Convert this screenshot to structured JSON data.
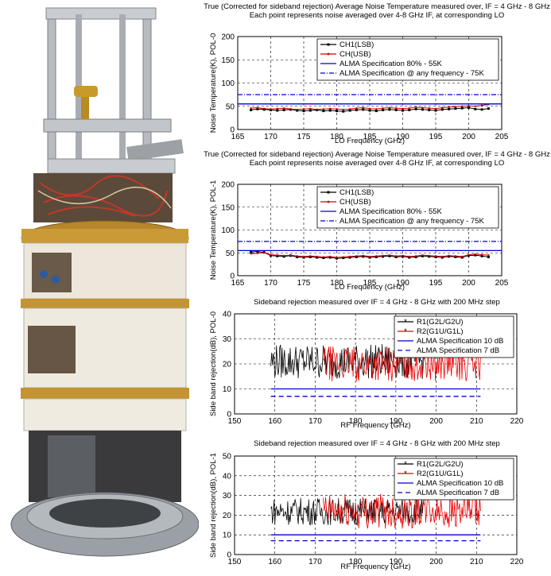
{
  "photo": {
    "description_icon": "cryostat-receiver-photo"
  },
  "chart_data": [
    {
      "type": "line",
      "title": "True (Corrected for sideband rejection) Average Noise Temperature measured over, IF = 4 GHz - 8 GHz",
      "subtitle": "Each point represents noise averaged over 4-8 GHz IF, at corresponding LO",
      "xlabel": "LO Frequency (GHz)",
      "ylabel": "Noise Temperature(K), POL-0",
      "xlim": [
        165,
        205
      ],
      "ylim": [
        0,
        200
      ],
      "xticks": [
        165,
        170,
        175,
        180,
        185,
        190,
        195,
        200,
        205
      ],
      "yticks": [
        0,
        50,
        100,
        150,
        200
      ],
      "grid": true,
      "legend_position": "top-right",
      "x": [
        167,
        168,
        169,
        170,
        171,
        172,
        173,
        174,
        175,
        176,
        177,
        178,
        179,
        180,
        181,
        182,
        183,
        184,
        185,
        186,
        187,
        188,
        189,
        190,
        191,
        192,
        193,
        194,
        195,
        196,
        197,
        198,
        199,
        200,
        201,
        202,
        203
      ],
      "series": [
        {
          "name": "CH1(LSB)",
          "color": "#000000",
          "style": "solid-square",
          "values": [
            42,
            44,
            43,
            42,
            41,
            42,
            43,
            41,
            40,
            41,
            42,
            40,
            41,
            40,
            39,
            41,
            42,
            43,
            41,
            40,
            42,
            43,
            42,
            41,
            42,
            44,
            43,
            42,
            41,
            43,
            44,
            45,
            46,
            47,
            44,
            43,
            45
          ]
        },
        {
          "name": "CH(USB)",
          "color": "#cc0000",
          "style": "solid-dot",
          "values": [
            46,
            47,
            45,
            44,
            45,
            46,
            44,
            43,
            44,
            45,
            43,
            44,
            45,
            44,
            43,
            44,
            46,
            47,
            45,
            44,
            46,
            47,
            46,
            45,
            46,
            48,
            47,
            46,
            45,
            47,
            48,
            49,
            50,
            51,
            50,
            52,
            54
          ]
        },
        {
          "name": "ALMA Specification 80% - 55K",
          "color": "#0000cc",
          "style": "hline",
          "value": 55
        },
        {
          "name": "ALMA Specification @ any frequency - 75K",
          "color": "#0000cc",
          "style": "dashdot-hline",
          "value": 75
        }
      ]
    },
    {
      "type": "line",
      "title": "True (Corrected for sideband rejection) Average Noise Temperature measured over, IF = 4 GHz - 8 GHz",
      "subtitle": "Each point represents noise averaged over 4-8 GHz IF, at corresponding LO",
      "xlabel": "LO Frequency (GHz)",
      "ylabel": "Noise Temperature(K), POL-1",
      "xlim": [
        165,
        205
      ],
      "ylim": [
        0,
        200
      ],
      "xticks": [
        165,
        170,
        175,
        180,
        185,
        190,
        195,
        200,
        205
      ],
      "yticks": [
        0,
        50,
        100,
        150,
        200
      ],
      "grid": true,
      "legend_position": "top-right",
      "x": [
        167,
        168,
        169,
        170,
        171,
        172,
        173,
        174,
        175,
        176,
        177,
        178,
        179,
        180,
        181,
        182,
        183,
        184,
        185,
        186,
        187,
        188,
        189,
        190,
        191,
        192,
        193,
        194,
        195,
        196,
        197,
        198,
        199,
        200,
        201,
        202,
        203
      ],
      "series": [
        {
          "name": "CH1(LSB)",
          "color": "#000000",
          "style": "solid-square",
          "values": [
            52,
            53,
            51,
            44,
            43,
            42,
            44,
            41,
            40,
            41,
            40,
            39,
            40,
            38,
            39,
            40,
            41,
            42,
            40,
            41,
            42,
            43,
            41,
            42,
            40,
            41,
            43,
            42,
            41,
            40,
            42,
            41,
            40,
            44,
            45,
            43,
            41
          ]
        },
        {
          "name": "CH(USB)",
          "color": "#cc0000",
          "style": "solid-dot",
          "values": [
            48,
            49,
            50,
            46,
            45,
            44,
            45,
            43,
            42,
            43,
            42,
            41,
            42,
            40,
            41,
            42,
            43,
            44,
            42,
            43,
            44,
            45,
            43,
            44,
            42,
            43,
            45,
            44,
            43,
            42,
            44,
            43,
            42,
            46,
            47,
            46,
            45
          ]
        },
        {
          "name": "ALMA Specification 80% - 55K",
          "color": "#0000cc",
          "style": "hline",
          "value": 55
        },
        {
          "name": "ALMA Specification @ any frequency - 75K",
          "color": "#0000cc",
          "style": "dashdot-hline",
          "value": 75
        }
      ]
    },
    {
      "type": "line",
      "title": "Sideband rejection measured over IF = 4 GHz - 8 GHz with 200 MHz step",
      "xlabel": "RF Frequency (GHz)",
      "ylabel": "Side band rejection(dB), POL-0",
      "xlim": [
        150,
        220
      ],
      "ylim": [
        0,
        40
      ],
      "xticks": [
        150,
        160,
        170,
        180,
        190,
        200,
        210,
        220
      ],
      "yticks": [
        0,
        10,
        20,
        30,
        40
      ],
      "grid": true,
      "legend_position": "top-right",
      "series": [
        {
          "name": "R1(G2L/G2U)",
          "color": "#000000",
          "style": "noisy-band",
          "range_x": [
            159,
            197
          ],
          "mean": 21,
          "spread": 7
        },
        {
          "name": "R2(G1U/G1L)",
          "color": "#ee0000",
          "style": "noisy-band",
          "range_x": [
            172,
            211
          ],
          "mean": 20,
          "spread": 7
        },
        {
          "name": "ALMA Specification 10 dB",
          "color": "#0000cc",
          "style": "hline",
          "value": 10,
          "range_x": [
            159,
            211
          ]
        },
        {
          "name": "ALMA Specification 7 dB",
          "color": "#0000cc",
          "style": "dash-hline",
          "value": 7,
          "range_x": [
            159,
            211
          ]
        }
      ]
    },
    {
      "type": "line",
      "title": "Sideband rejection measured over IF = 4 GHz - 8 GHz with 200 MHz step",
      "xlabel": "RF Frequency (GHz)",
      "ylabel": "Side band rejection(dB), POL-1",
      "xlim": [
        150,
        220
      ],
      "ylim": [
        0,
        50
      ],
      "xticks": [
        150,
        160,
        170,
        180,
        190,
        200,
        210,
        220
      ],
      "yticks": [
        0,
        10,
        20,
        30,
        40,
        50
      ],
      "grid": true,
      "legend_position": "top-right",
      "series": [
        {
          "name": "R1(G2L/G2U)",
          "color": "#000000",
          "style": "noisy-band",
          "range_x": [
            159,
            197
          ],
          "mean": 22,
          "spread": 7
        },
        {
          "name": "R2(G1U/G1L)",
          "color": "#ee0000",
          "style": "noisy-band",
          "range_x": [
            172,
            211
          ],
          "mean": 22,
          "spread": 9
        },
        {
          "name": "ALMA Specification 10 dB",
          "color": "#0000cc",
          "style": "hline",
          "value": 10,
          "range_x": [
            159,
            211
          ]
        },
        {
          "name": "ALMA Specification 7 dB",
          "color": "#0000cc",
          "style": "dash-hline",
          "value": 7,
          "range_x": [
            159,
            211
          ]
        }
      ]
    }
  ]
}
